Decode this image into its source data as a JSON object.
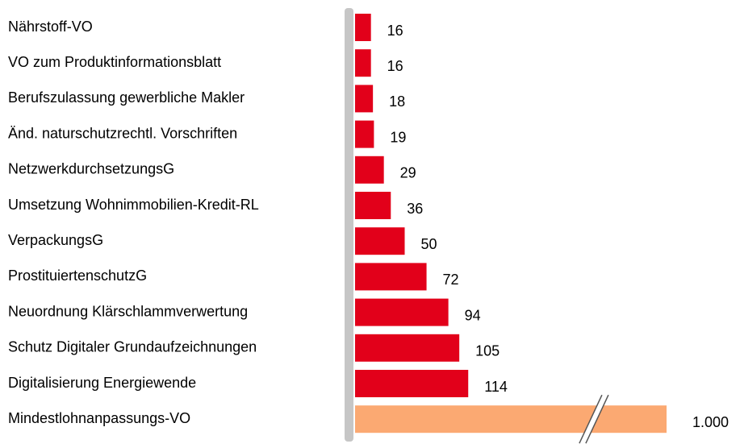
{
  "chart_data": {
    "type": "bar",
    "orientation": "horizontal",
    "categories": [
      "Nährstoff-VO",
      "VO zum Produktinformationsblatt",
      "Berufszulassung  gewerbliche Makler",
      "Änd. naturschutzrechtl. Vorschriften",
      "NetzwerkdurchsetzungsG",
      "Umsetzung Wohnimmobilien-Kredit-RL",
      "VerpackungsG",
      "ProstituiertenschutzG",
      "Neuordnung Klärschlammverwertung",
      "Schutz Digitaler  Grundaufzeichnungen",
      "Digitalisierung  Energiewende",
      "Mindestlohnanpassungs-VO"
    ],
    "values": [
      16,
      16,
      18,
      19,
      29,
      36,
      50,
      72,
      94,
      105,
      114,
      1000
    ],
    "value_labels": [
      "16",
      "16",
      "18",
      "19",
      "29",
      "36",
      "50",
      "72",
      "94",
      "105",
      "114",
      "1.000"
    ],
    "colors": [
      "#e2001a",
      "#e2001a",
      "#e2001a",
      "#e2001a",
      "#e2001a",
      "#e2001a",
      "#e2001a",
      "#e2001a",
      "#e2001a",
      "#e2001a",
      "#e2001a",
      "#fba972"
    ],
    "axis_break": true
  }
}
